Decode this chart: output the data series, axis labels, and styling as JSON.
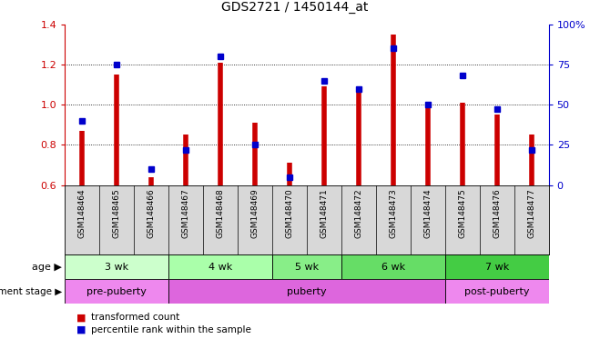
{
  "title": "GDS2721 / 1450144_at",
  "samples": [
    "GSM148464",
    "GSM148465",
    "GSM148466",
    "GSM148467",
    "GSM148468",
    "GSM148469",
    "GSM148470",
    "GSM148471",
    "GSM148472",
    "GSM148473",
    "GSM148474",
    "GSM148475",
    "GSM148476",
    "GSM148477"
  ],
  "transformed_count": [
    0.87,
    1.15,
    0.64,
    0.85,
    1.21,
    0.91,
    0.71,
    1.09,
    1.06,
    1.35,
    1.0,
    1.01,
    0.95,
    0.85
  ],
  "percentile_rank_pct": [
    40,
    75,
    10,
    22,
    80,
    25,
    5,
    65,
    60,
    85,
    50,
    68,
    47,
    22
  ],
  "ymin": 0.6,
  "ymax": 1.4,
  "y2min": 0,
  "y2max": 100,
  "yticks": [
    0.6,
    0.8,
    1.0,
    1.2,
    1.4
  ],
  "y2ticks": [
    0,
    25,
    50,
    75,
    100
  ],
  "y2ticklabels": [
    "0",
    "25",
    "50",
    "75",
    "100%"
  ],
  "bar_color": "#cc0000",
  "dot_color": "#0000cc",
  "age_groups": [
    {
      "label": "3 wk",
      "start": 0,
      "end": 3,
      "color": "#ccffcc"
    },
    {
      "label": "4 wk",
      "start": 3,
      "end": 6,
      "color": "#aaffaa"
    },
    {
      "label": "5 wk",
      "start": 6,
      "end": 8,
      "color": "#88ee88"
    },
    {
      "label": "6 wk",
      "start": 8,
      "end": 11,
      "color": "#66dd66"
    },
    {
      "label": "7 wk",
      "start": 11,
      "end": 14,
      "color": "#44cc44"
    }
  ],
  "dev_groups": [
    {
      "label": "pre-puberty",
      "start": 0,
      "end": 3,
      "color": "#ee88ee"
    },
    {
      "label": "puberty",
      "start": 3,
      "end": 11,
      "color": "#dd66dd"
    },
    {
      "label": "post-puberty",
      "start": 11,
      "end": 14,
      "color": "#ee88ee"
    }
  ],
  "legend_red": "transformed count",
  "legend_blue": "percentile rank within the sample",
  "age_label": "age",
  "dev_label": "development stage",
  "grid_color": "#000000"
}
